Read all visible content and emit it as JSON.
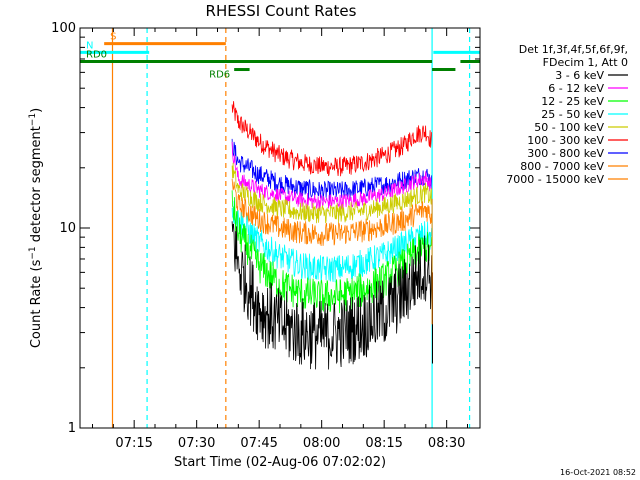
{
  "chart_data": {
    "type": "line",
    "title": "RHESSI Count Rates",
    "xlabel": "Start Time (02-Aug-06 07:02:02)",
    "ylabel": "Count Rate (s⁻¹ detector segment⁻¹)",
    "ylabel_parts": [
      "Count Rate (s",
      "−1",
      " detector segment",
      "−1",
      ")"
    ],
    "x_unit": "minutes after 07:00 UT",
    "xlim": [
      2.0,
      98.0
    ],
    "ylim": [
      1,
      100
    ],
    "yscale": "log",
    "x_ticks": [
      {
        "value": 15,
        "label": "07:15"
      },
      {
        "value": 30,
        "label": "07:30"
      },
      {
        "value": 45,
        "label": "07:45"
      },
      {
        "value": 60,
        "label": "08:00"
      },
      {
        "value": 75,
        "label": "08:15"
      },
      {
        "value": 90,
        "label": "08:30"
      }
    ],
    "y_ticks": [
      {
        "value": 1,
        "label": "1"
      },
      {
        "value": 10,
        "label": "10"
      },
      {
        "value": 100,
        "label": "100"
      }
    ],
    "legend_position": "right",
    "legend_header": [
      "Det 1f,3f,4f,5f,6f,9f,",
      "FDecim 1, Att 0"
    ],
    "timestamp": "16-Oct-2021 08:52",
    "series": [
      {
        "name": "3 - 6 keV",
        "color": "#000000",
        "x": [
          38.5,
          40,
          45,
          50,
          55,
          60,
          65,
          70,
          75,
          80,
          82,
          85,
          86.5
        ],
        "y": [
          10,
          6.5,
          4.0,
          3.3,
          3.0,
          2.9,
          3.0,
          3.3,
          3.8,
          4.8,
          5.5,
          6.5,
          5.5
        ]
      },
      {
        "name": "6 - 12 keV",
        "color": "#ff00ff",
        "x": [
          38.5,
          40,
          45,
          50,
          55,
          60,
          65,
          70,
          75,
          80,
          82,
          85,
          86.5
        ],
        "y": [
          25,
          17.5,
          15.5,
          14.5,
          13.8,
          13.5,
          13.6,
          14.0,
          14.8,
          16.2,
          17.0,
          17.8,
          16
        ]
      },
      {
        "name": "12 - 25 keV",
        "color": "#00ff00",
        "x": [
          38.5,
          40,
          45,
          50,
          55,
          60,
          65,
          70,
          75,
          80,
          82,
          85,
          86.5
        ],
        "y": [
          13.5,
          9.5,
          6.5,
          5.2,
          4.7,
          4.5,
          4.6,
          4.9,
          5.5,
          6.6,
          7.3,
          8.0,
          7.5
        ]
      },
      {
        "name": "25 - 50 keV",
        "color": "#00ffff",
        "x": [
          38.5,
          40,
          45,
          50,
          55,
          60,
          65,
          70,
          75,
          80,
          82,
          85,
          86.5
        ],
        "y": [
          12.5,
          11,
          8.5,
          7.2,
          6.5,
          6.2,
          6.3,
          6.7,
          7.3,
          8.3,
          8.8,
          9.3,
          8.8
        ]
      },
      {
        "name": "50 - 100 keV",
        "color": "#cccc00",
        "x": [
          38.5,
          40,
          45,
          50,
          55,
          60,
          65,
          70,
          75,
          80,
          82,
          85,
          86.5
        ],
        "y": [
          20,
          15.5,
          13.5,
          12.5,
          12.0,
          11.8,
          11.9,
          12.2,
          12.8,
          13.8,
          14.3,
          15.0,
          14
        ]
      },
      {
        "name": "100 - 300 keV",
        "color": "#ff0000",
        "x": [
          38.5,
          40,
          45,
          50,
          55,
          60,
          65,
          70,
          75,
          80,
          82,
          85,
          86.5
        ],
        "y": [
          40,
          34,
          27,
          23,
          21.2,
          20.3,
          20.2,
          21.2,
          23.0,
          26.0,
          29.0,
          30.5,
          27
        ]
      },
      {
        "name": "300 - 800 keV",
        "color": "#0000ff",
        "x": [
          38.5,
          40,
          45,
          50,
          55,
          60,
          65,
          70,
          75,
          80,
          82,
          85,
          86.5
        ],
        "y": [
          26,
          21.5,
          18.5,
          16.7,
          15.8,
          15.3,
          15.3,
          15.8,
          16.5,
          17.5,
          18.0,
          18.5,
          17
        ]
      },
      {
        "name": "800 - 7000 keV",
        "color": "#ff8000",
        "x": [
          38.5,
          40,
          45,
          50,
          55,
          60,
          65,
          70,
          75,
          80,
          82,
          85,
          86.5
        ],
        "y": [
          17,
          13,
          11.0,
          10.0,
          9.5,
          9.3,
          9.4,
          9.7,
          10.2,
          11.0,
          11.6,
          12.5,
          11.5
        ]
      },
      {
        "name": "7000 - 15000 keV",
        "color": "#ff8000",
        "x": [],
        "y": []
      }
    ],
    "annotations": [
      {
        "label": "S",
        "color": "#ff8000",
        "y": 83.5,
        "x1": 7.8,
        "x2": 37.0
      },
      {
        "label": "N",
        "color": "#00ffff",
        "y": 75.5,
        "x1": 2.0,
        "x2": 18.6
      },
      {
        "label": "",
        "color": "#00ffff",
        "y": 75.5,
        "x1": 86.8,
        "x2": 98.0
      },
      {
        "label": "RD0",
        "color": "#008000",
        "y": 68.0,
        "x1": 2.0,
        "x2": 86.5
      },
      {
        "label": "",
        "color": "#008000",
        "y": 68.0,
        "x1": 93.3,
        "x2": 98.0
      },
      {
        "label": "RD6",
        "color": "#008000",
        "y": 62.0,
        "x1": 39.0,
        "x2": 42.7
      },
      {
        "label": "",
        "color": "#008000",
        "y": 62.0,
        "x1": 86.5,
        "x2": 92.1
      }
    ],
    "vertical_lines": [
      {
        "x": 9.8,
        "color": "#ff8000",
        "style": "solid"
      },
      {
        "x": 18.1,
        "color": "#00ffff",
        "style": "dashed"
      },
      {
        "x": 37.0,
        "color": "#ff8000",
        "style": "dashed"
      },
      {
        "x": 86.5,
        "color": "#00ffff",
        "style": "solid"
      },
      {
        "x": 95.5,
        "color": "#00ffff",
        "style": "dashed"
      }
    ]
  }
}
